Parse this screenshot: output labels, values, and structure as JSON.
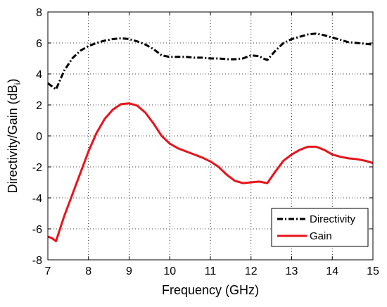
{
  "chart_data": {
    "type": "line",
    "title": "",
    "xlabel": "Frequency (GHz)",
    "ylabel_main": "Directivity/Gain (dB",
    "ylabel_sub": "i",
    "ylabel_close": ")",
    "xlim": [
      7,
      15
    ],
    "ylim": [
      -8,
      8
    ],
    "xticks": [
      7,
      8,
      9,
      10,
      11,
      12,
      13,
      14,
      15
    ],
    "yticks": [
      -8,
      -6,
      -4,
      -2,
      0,
      2,
      4,
      6,
      8
    ],
    "grid": true,
    "legend_position": "bottom-right",
    "series": [
      {
        "name": "Directivity",
        "color": "#000000",
        "dash": "dash-dot",
        "x": [
          7.0,
          7.1,
          7.2,
          7.3,
          7.4,
          7.6,
          7.8,
          8.0,
          8.2,
          8.4,
          8.6,
          8.8,
          9.0,
          9.2,
          9.4,
          9.6,
          9.8,
          10.0,
          10.2,
          10.4,
          10.6,
          10.8,
          11.0,
          11.2,
          11.4,
          11.6,
          11.8,
          12.0,
          12.2,
          12.3,
          12.4,
          12.6,
          12.8,
          13.0,
          13.2,
          13.4,
          13.6,
          13.8,
          14.0,
          14.2,
          14.4,
          14.6,
          14.8,
          15.0
        ],
        "y": [
          3.4,
          3.2,
          3.0,
          3.6,
          4.2,
          5.0,
          5.5,
          5.8,
          6.0,
          6.15,
          6.25,
          6.3,
          6.25,
          6.1,
          5.9,
          5.6,
          5.2,
          5.1,
          5.1,
          5.1,
          5.05,
          5.05,
          5.0,
          5.0,
          4.95,
          4.95,
          5.0,
          5.2,
          5.15,
          5.0,
          4.9,
          5.5,
          6.0,
          6.25,
          6.4,
          6.55,
          6.6,
          6.5,
          6.35,
          6.2,
          6.05,
          6.0,
          5.95,
          5.9
        ]
      },
      {
        "name": "Gain",
        "color": "#e8141c",
        "dash": "solid",
        "x": [
          7.0,
          7.1,
          7.2,
          7.4,
          7.6,
          7.8,
          8.0,
          8.2,
          8.4,
          8.6,
          8.8,
          9.0,
          9.2,
          9.4,
          9.6,
          9.8,
          10.0,
          10.2,
          10.4,
          10.6,
          10.8,
          11.0,
          11.2,
          11.4,
          11.6,
          11.8,
          12.0,
          12.2,
          12.4,
          12.6,
          12.8,
          13.0,
          13.2,
          13.4,
          13.6,
          13.8,
          14.0,
          14.2,
          14.4,
          14.6,
          14.8,
          15.0
        ],
        "y": [
          -6.5,
          -6.6,
          -6.8,
          -5.2,
          -3.8,
          -2.4,
          -1.0,
          0.2,
          1.1,
          1.7,
          2.05,
          2.1,
          1.95,
          1.5,
          0.8,
          0.0,
          -0.5,
          -0.8,
          -1.0,
          -1.2,
          -1.4,
          -1.65,
          -2.0,
          -2.5,
          -2.9,
          -3.05,
          -3.0,
          -2.95,
          -3.05,
          -2.3,
          -1.6,
          -1.2,
          -0.9,
          -0.7,
          -0.7,
          -0.9,
          -1.2,
          -1.35,
          -1.45,
          -1.5,
          -1.6,
          -1.75
        ]
      }
    ]
  }
}
